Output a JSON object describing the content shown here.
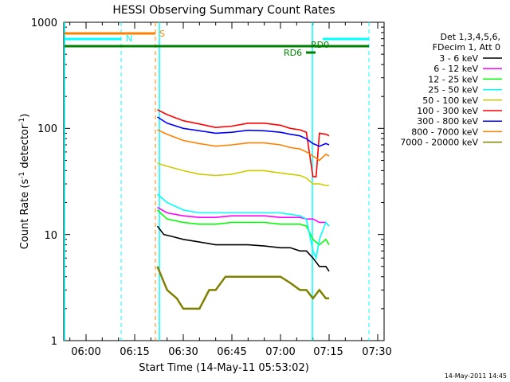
{
  "chart_data": {
    "type": "line",
    "title": "HESSI Observing Summary Count Rates",
    "xlabel": "Start Time (14-May-11 05:53:02)",
    "ylabel_main": "Count Rate (s",
    "ylabel_sup1": "-1",
    "ylabel_mid": " detector",
    "ylabel_sup2": "-1",
    "ylabel_end": ")",
    "yscale": "log",
    "ylim": [
      1,
      1000
    ],
    "xlim": [
      "05:53:02",
      "07:32:00"
    ],
    "x_ticks": [
      "06:00",
      "06:15",
      "06:30",
      "06:45",
      "07:00",
      "07:15",
      "07:30"
    ],
    "y_ticks": [
      "1",
      "10",
      "100",
      "1000"
    ],
    "legend_header": [
      "Det 1,3,4,5,6,",
      "FDecim 1, Att 0"
    ],
    "series": [
      {
        "name": "3 - 6 keV",
        "color": "#000000",
        "values": [
          [
            22,
            12
          ],
          [
            24,
            10
          ],
          [
            27,
            9.5
          ],
          [
            30,
            9.0
          ],
          [
            35,
            8.5
          ],
          [
            40,
            8.0
          ],
          [
            45,
            8.0
          ],
          [
            50,
            8.0
          ],
          [
            55,
            7.8
          ],
          [
            60,
            7.5
          ],
          [
            63,
            7.5
          ],
          [
            66,
            7.0
          ],
          [
            68,
            7.0
          ],
          [
            70,
            6.0
          ],
          [
            72,
            5.0
          ],
          [
            74,
            5.0
          ],
          [
            75,
            4.5
          ]
        ]
      },
      {
        "name": "6 - 12 keV",
        "color": "#ff00ff",
        "values": [
          [
            22,
            18
          ],
          [
            25,
            16
          ],
          [
            30,
            15
          ],
          [
            35,
            14.5
          ],
          [
            40,
            14.5
          ],
          [
            45,
            15
          ],
          [
            50,
            15
          ],
          [
            55,
            15
          ],
          [
            60,
            14.5
          ],
          [
            63,
            14.5
          ],
          [
            66,
            14.5
          ],
          [
            68,
            14
          ],
          [
            70,
            14
          ],
          [
            72,
            13
          ],
          [
            74,
            13
          ],
          [
            75,
            12
          ]
        ]
      },
      {
        "name": "12 - 25 keV",
        "color": "#00ff00",
        "values": [
          [
            22,
            17
          ],
          [
            25,
            14
          ],
          [
            30,
            13
          ],
          [
            35,
            12.5
          ],
          [
            40,
            12.5
          ],
          [
            45,
            13
          ],
          [
            50,
            13
          ],
          [
            55,
            13
          ],
          [
            60,
            12.5
          ],
          [
            63,
            12.5
          ],
          [
            66,
            12.5
          ],
          [
            68,
            12
          ],
          [
            70,
            9
          ],
          [
            72,
            8
          ],
          [
            74,
            9
          ],
          [
            75,
            8
          ]
        ]
      },
      {
        "name": "25 - 50 keV",
        "color": "#00ffff",
        "values": [
          [
            22,
            24
          ],
          [
            25,
            20
          ],
          [
            30,
            17
          ],
          [
            35,
            16
          ],
          [
            40,
            16
          ],
          [
            45,
            16
          ],
          [
            50,
            16
          ],
          [
            55,
            16
          ],
          [
            60,
            16
          ],
          [
            63,
            15.5
          ],
          [
            66,
            15
          ],
          [
            68,
            14
          ],
          [
            70,
            7
          ],
          [
            71,
            6
          ],
          [
            72,
            9
          ],
          [
            74,
            13
          ],
          [
            75,
            12
          ]
        ]
      },
      {
        "name": "50 - 100 keV",
        "color": "#cccc00",
        "values": [
          [
            22,
            47
          ],
          [
            25,
            44
          ],
          [
            30,
            40
          ],
          [
            35,
            37
          ],
          [
            40,
            36
          ],
          [
            45,
            37
          ],
          [
            50,
            40
          ],
          [
            55,
            40
          ],
          [
            60,
            38
          ],
          [
            63,
            37
          ],
          [
            66,
            36
          ],
          [
            68,
            34
          ],
          [
            70,
            30
          ],
          [
            72,
            30
          ],
          [
            74,
            29
          ],
          [
            75,
            29
          ]
        ]
      },
      {
        "name": "100 - 300 keV",
        "color": "#ff0000",
        "values": [
          [
            22,
            150
          ],
          [
            25,
            135
          ],
          [
            30,
            118
          ],
          [
            35,
            110
          ],
          [
            40,
            102
          ],
          [
            45,
            105
          ],
          [
            50,
            112
          ],
          [
            55,
            112
          ],
          [
            60,
            107
          ],
          [
            63,
            100
          ],
          [
            66,
            97
          ],
          [
            68,
            92
          ],
          [
            70,
            35
          ],
          [
            71,
            35
          ],
          [
            72,
            90
          ],
          [
            74,
            88
          ],
          [
            75,
            85
          ]
        ]
      },
      {
        "name": "300 - 800 keV",
        "color": "#0000ff",
        "values": [
          [
            22,
            128
          ],
          [
            25,
            112
          ],
          [
            30,
            100
          ],
          [
            35,
            95
          ],
          [
            40,
            90
          ],
          [
            45,
            92
          ],
          [
            50,
            96
          ],
          [
            55,
            95
          ],
          [
            60,
            92
          ],
          [
            63,
            88
          ],
          [
            66,
            85
          ],
          [
            68,
            80
          ],
          [
            70,
            72
          ],
          [
            72,
            68
          ],
          [
            74,
            72
          ],
          [
            75,
            70
          ]
        ]
      },
      {
        "name": "800 - 7000 keV",
        "color": "#ff8000",
        "values": [
          [
            22,
            97
          ],
          [
            25,
            88
          ],
          [
            30,
            77
          ],
          [
            35,
            72
          ],
          [
            40,
            68
          ],
          [
            45,
            70
          ],
          [
            50,
            73
          ],
          [
            55,
            73
          ],
          [
            60,
            70
          ],
          [
            63,
            66
          ],
          [
            66,
            64
          ],
          [
            68,
            60
          ],
          [
            70,
            55
          ],
          [
            72,
            50
          ],
          [
            74,
            57
          ],
          [
            75,
            55
          ]
        ]
      },
      {
        "name": "7000 - 20000 keV",
        "color": "#808000",
        "values": [
          [
            22,
            5.0
          ],
          [
            25,
            3.0
          ],
          [
            28,
            2.5
          ],
          [
            30,
            2.0
          ],
          [
            33,
            2.0
          ],
          [
            35,
            2.0
          ],
          [
            38,
            3.0
          ],
          [
            40,
            3.0
          ],
          [
            43,
            4.0
          ],
          [
            45,
            4.0
          ],
          [
            48,
            4.0
          ],
          [
            50,
            4.0
          ],
          [
            55,
            4.0
          ],
          [
            60,
            4.0
          ],
          [
            63,
            3.5
          ],
          [
            66,
            3.0
          ],
          [
            68,
            3.0
          ],
          [
            70,
            2.5
          ],
          [
            72,
            3.0
          ],
          [
            74,
            2.5
          ],
          [
            75,
            2.5
          ]
        ]
      }
    ],
    "overlay_labels": {
      "saa": "S",
      "night": "N",
      "rd0": "RD0",
      "rd6": "RD6"
    },
    "timestamp": "14-May-2011 14:45"
  }
}
